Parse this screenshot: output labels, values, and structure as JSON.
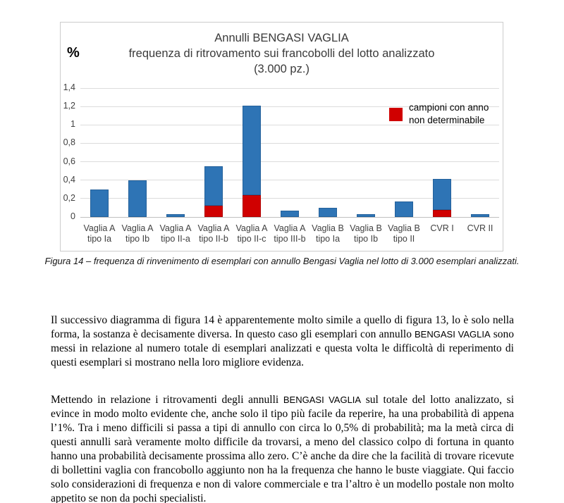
{
  "page": {
    "caption": "Figura 14 – frequenza di rinvenimento di esemplari con annullo Bengasi Vaglia nel lotto di 3.000 esemplari analizzati."
  },
  "chart_data": {
    "type": "bar",
    "stacked": true,
    "title_lines": [
      "Annulli BENGASI VAGLIA",
      "frequenza di ritrovamento sui francobolli del lotto analizzato",
      "(3.000 pz.)"
    ],
    "unit_label": "%",
    "ylim": [
      0,
      1.4
    ],
    "grid": true,
    "yticks": [
      {
        "label": "0",
        "value": 0
      },
      {
        "label": "0,2",
        "value": 0.2
      },
      {
        "label": "0,4",
        "value": 0.4
      },
      {
        "label": "0,6",
        "value": 0.6
      },
      {
        "label": "0,8",
        "value": 0.8
      },
      {
        "label": "1",
        "value": 1.0
      },
      {
        "label": "1,2",
        "value": 1.2
      },
      {
        "label": "1,4",
        "value": 1.4
      }
    ],
    "categories": [
      [
        "Vaglia A",
        "tipo Ia"
      ],
      [
        "Vaglia A",
        "tipo Ib"
      ],
      [
        "Vaglia A",
        "tipo II-a"
      ],
      [
        "Vaglia A",
        "tipo II-b"
      ],
      [
        "Vaglia A",
        "tipo II-c"
      ],
      [
        "Vaglia A",
        "tipo III-b"
      ],
      [
        "Vaglia B",
        "tipo Ia"
      ],
      [
        "Vaglia B",
        "tipo Ib"
      ],
      [
        "Vaglia B",
        "tipo II"
      ],
      [
        "CVR I"
      ],
      [
        "CVR II"
      ]
    ],
    "totals": [
      0.3,
      0.4,
      0.03,
      0.55,
      1.21,
      0.07,
      0.1,
      0.03,
      0.17,
      0.41,
      0.03
    ],
    "series": [
      {
        "id": "campioni-anno-non-determinabile",
        "name": "campioni con anno non determinabile",
        "color": "#d00000",
        "border": "#b00000",
        "values": [
          0,
          0,
          0,
          0.12,
          0.24,
          0,
          0,
          0,
          0,
          0.08,
          0
        ]
      },
      {
        "id": "campioni-anno-determinabile",
        "color": "#2e74b5",
        "border": "#24619b",
        "values": [
          0.3,
          0.4,
          0.03,
          0.43,
          0.97,
          0.07,
          0.1,
          0.03,
          0.17,
          0.33,
          0.03
        ]
      }
    ],
    "legend": {
      "swatch_color": "#d00000",
      "lines": [
        "campioni con anno",
        "non determinabile"
      ],
      "position": "top-right"
    }
  },
  "paragraphs": [
    [
      {
        "style": "normal",
        "text": "Il successivo diagramma di figura 14 è apparentemente molto simile a quello di figura 13, lo è solo nella forma, la sostanza è decisamente diversa. In questo caso gli esemplari con annullo "
      },
      {
        "style": "sans",
        "text": "BENGASI VAGLIA"
      },
      {
        "style": "normal",
        "text": " sono messi in relazione al numero totale di esemplari analizzati e questa volta le difficoltà di reperimento di questi esemplari si mostrano nella loro migliore evidenza."
      }
    ],
    [
      {
        "style": "normal",
        "text": "Mettendo in relazione i ritrovamenti degli annulli "
      },
      {
        "style": "sans",
        "text": "BENGASI VAGLIA"
      },
      {
        "style": "normal",
        "text": " sul totale del lotto analizzato, si evince in modo molto evidente che, anche solo il tipo più facile da reperire, ha una probabilità di appena l’1%. Tra i meno difficili si passa a tipi di annullo con circa lo 0,5% di probabilità; ma la metà circa di questi annulli sarà veramente molto difficile da trovarsi, a meno del classico colpo di fortuna in quanto hanno una probabilità decisamente prossima allo zero. C’è anche da dire che la facilità di trovare ricevute di bollettini vaglia con francobollo aggiunto non ha la frequenza che hanno le buste viaggiate. Qui faccio solo considerazioni di frequenza e non di valore commerciale e tra l’altro è un modello postale non molto appetito se non da pochi specialisti."
      }
    ]
  ]
}
